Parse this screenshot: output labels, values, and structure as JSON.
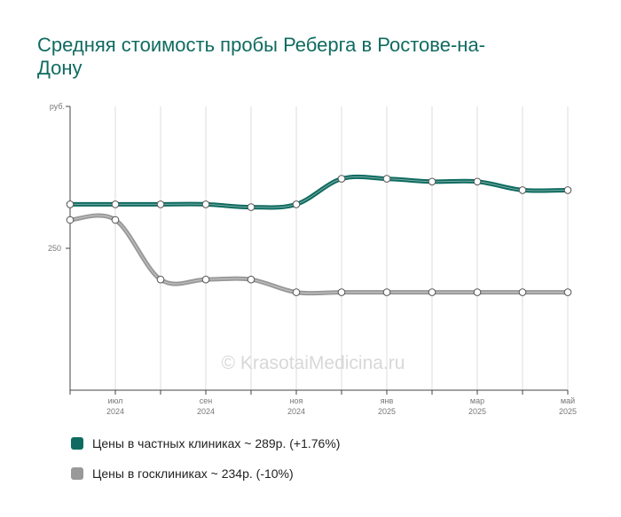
{
  "chart_data": {
    "type": "line",
    "title": "Средняя стоимость пробы Реберга в Ростове-на-Дону",
    "y_unit": "руб.",
    "y_ticks": [
      250
    ],
    "ylim": [
      150,
      350
    ],
    "x_labels": [
      {
        "month": "июл",
        "year": "2024"
      },
      {
        "month": "сен",
        "year": "2024"
      },
      {
        "month": "ноя",
        "year": "2024"
      },
      {
        "month": "янв",
        "year": "2025"
      },
      {
        "month": "мар",
        "year": "2025"
      },
      {
        "month": "май",
        "year": "2025"
      }
    ],
    "x": [
      "2024-06",
      "2024-07",
      "2024-08",
      "2024-09",
      "2024-10",
      "2024-11",
      "2024-12",
      "2025-01",
      "2025-02",
      "2025-03",
      "2025-04",
      "2025-05"
    ],
    "series": [
      {
        "name": "Цены в частных клиниках ~ 289р. (+1.76%)",
        "color": "#0f6b60",
        "values": [
          281,
          281,
          281,
          281,
          279,
          281,
          299,
          299,
          297,
          297,
          291,
          291
        ]
      },
      {
        "name": "Цены в госклиниках ~ 234р. (-10%)",
        "color": "#999999",
        "values": [
          270,
          270,
          228,
          228,
          228,
          219,
          219,
          219,
          219,
          219,
          219,
          219
        ]
      }
    ],
    "grid": "vertical",
    "legend_position": "bottom"
  },
  "watermark": "© KrasotaiMedicina.ru"
}
